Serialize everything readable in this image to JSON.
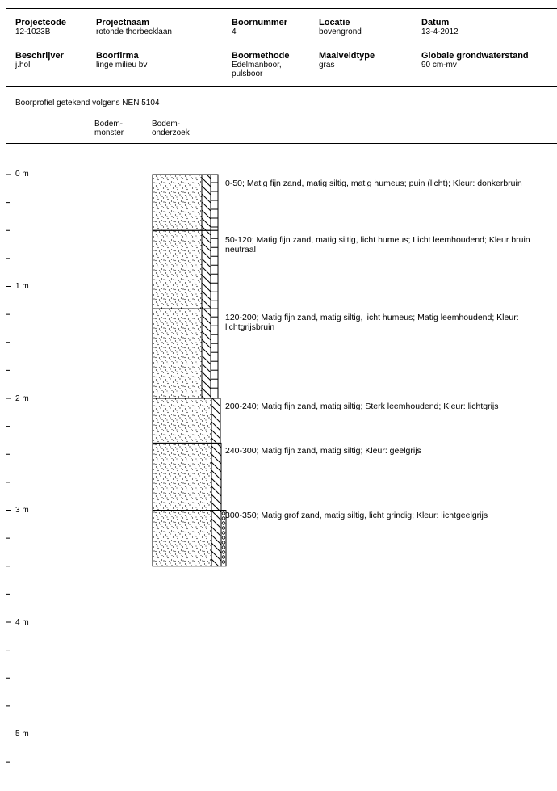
{
  "header": {
    "row1": [
      {
        "label": "Projectcode",
        "value": "12-1023B"
      },
      {
        "label": "Projectnaam",
        "value": "rotonde thorbecklaan"
      },
      {
        "label": "Boornummer",
        "value": "4"
      },
      {
        "label": "Locatie",
        "value": "bovengrond"
      },
      {
        "label": "Datum",
        "value": "13-4-2012"
      }
    ],
    "row2": [
      {
        "label": "Beschrijver",
        "value": "j.hol"
      },
      {
        "label": "Boorfirma",
        "value": "linge milieu bv"
      },
      {
        "label": "Boormethode",
        "value": "Edelmanboor, pulsboor"
      },
      {
        "label": "Maaiveldtype",
        "value": "gras"
      },
      {
        "label": "Globale grondwaterstand",
        "value": "90 cm-mv"
      }
    ]
  },
  "profile_note": "Boorprofiel getekend volgens NEN 5104",
  "columns": {
    "bodem_monster": "Bodem-\nmonster",
    "bodem_onderzoek": "Bodem-\nonderzoek"
  },
  "depth_labels": [
    "0 m",
    "1 m",
    "2 m",
    "3 m",
    "4 m",
    "5 m"
  ],
  "layers": [
    {
      "top_cm": 0,
      "bottom_cm": 50,
      "description": "0-50; Matig fijn zand, matig siltig, matig humeus; puin (licht); Kleur: donkerbruin",
      "leem": "none",
      "humus": "matig"
    },
    {
      "top_cm": 50,
      "bottom_cm": 120,
      "description": "50-120; Matig fijn zand, matig siltig, licht humeus; Licht leemhoudend; Kleur bruin neutraal",
      "leem": "licht",
      "humus": "licht"
    },
    {
      "top_cm": 120,
      "bottom_cm": 200,
      "description": "120-200; Matig fijn zand, matig siltig, licht humeus; Matig leemhoudend; Kleur: lichtgrijsbruin",
      "leem": "matig",
      "humus": "licht"
    },
    {
      "top_cm": 200,
      "bottom_cm": 240,
      "description": "200-240; Matig fijn zand, matig siltig; Sterk leemhoudend; Kleur: lichtgrijs",
      "leem": "sterk",
      "humus": "none"
    },
    {
      "top_cm": 240,
      "bottom_cm": 300,
      "description": "240-300; Matig fijn zand, matig siltig; Kleur: geelgrijs",
      "leem": "none",
      "humus": "none"
    },
    {
      "top_cm": 300,
      "bottom_cm": 350,
      "description": "300-350; Matig grof zand, matig siltig, licht grindig; Kleur: lichtgeelgrijs",
      "leem": "none",
      "humus": "none",
      "grindig": true
    }
  ]
}
